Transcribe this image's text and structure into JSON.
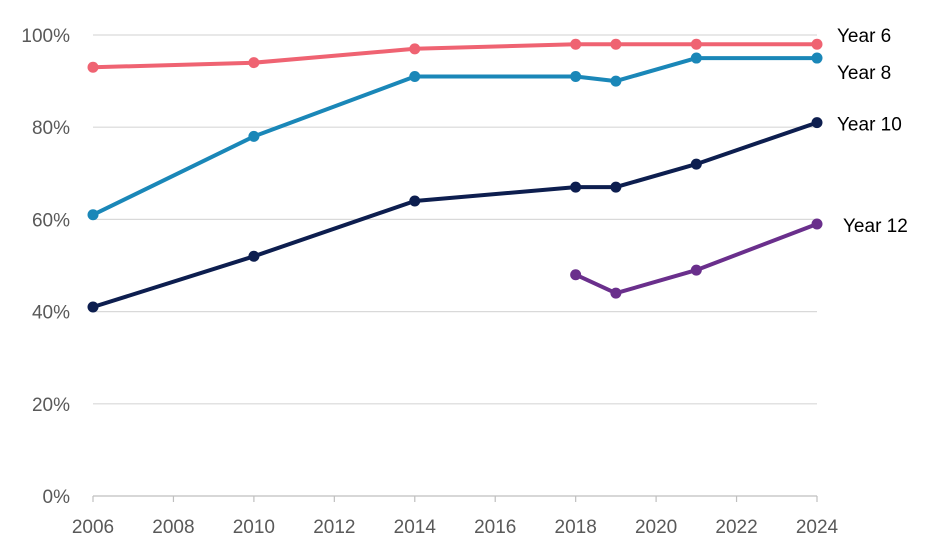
{
  "chart_data": {
    "type": "line",
    "title": "",
    "xlabel": "",
    "ylabel": "",
    "xlim": [
      2006,
      2024
    ],
    "ylim": [
      0,
      100
    ],
    "x_ticks": [
      "2006",
      "2008",
      "2010",
      "2012",
      "2014",
      "2016",
      "2018",
      "2020",
      "2022",
      "2024"
    ],
    "y_ticks": [
      "0%",
      "20%",
      "40%",
      "60%",
      "80%",
      "100%"
    ],
    "grid": true,
    "legend": "labels at line ends (right)",
    "series": [
      {
        "name": "Year 6",
        "color": "#ef6372",
        "x": [
          2006,
          2010,
          2014,
          2018,
          2019,
          2021,
          2024
        ],
        "values": [
          93,
          94,
          97,
          98,
          98,
          98,
          98
        ]
      },
      {
        "name": "Year 8",
        "color": "#1a87b8",
        "x": [
          2006,
          2010,
          2014,
          2018,
          2019,
          2021,
          2024
        ],
        "values": [
          61,
          78,
          91,
          91,
          90,
          95,
          95
        ]
      },
      {
        "name": "Year 10",
        "color": "#0d1e4f",
        "x": [
          2006,
          2010,
          2014,
          2018,
          2019,
          2021,
          2024
        ],
        "values": [
          41,
          52,
          64,
          67,
          67,
          72,
          81
        ]
      },
      {
        "name": "Year 12",
        "color": "#6a2f8c",
        "x": [
          2018,
          2019,
          2021,
          2024
        ],
        "values": [
          48,
          44,
          49,
          59
        ]
      }
    ]
  }
}
